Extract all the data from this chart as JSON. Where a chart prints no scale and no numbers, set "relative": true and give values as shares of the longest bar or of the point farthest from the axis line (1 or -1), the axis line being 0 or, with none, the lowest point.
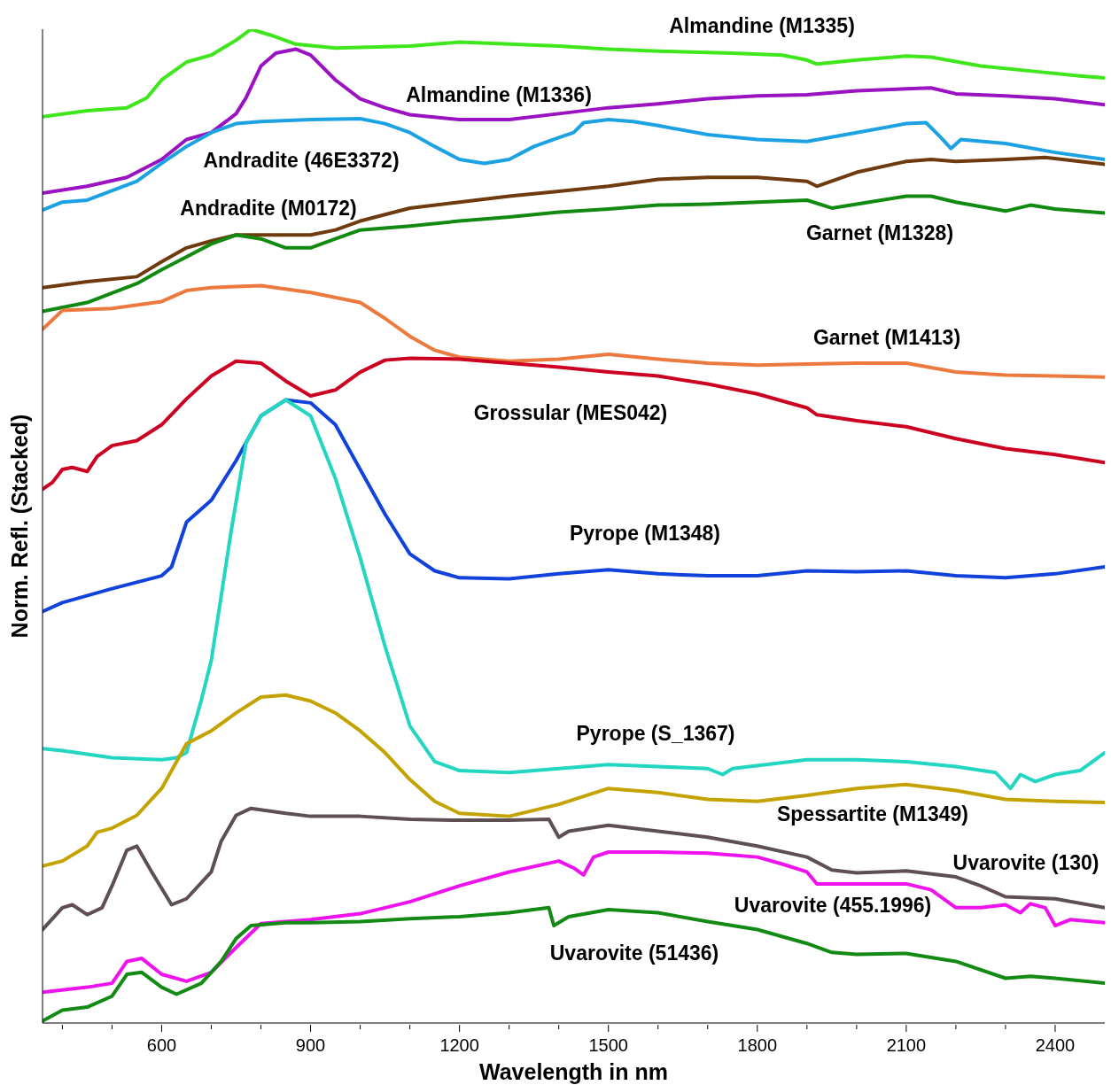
{
  "chart_data": {
    "type": "line",
    "relative": true,
    "xlabel": "Wavelength in nm",
    "ylabel": "Norm. Refl. (Stacked)",
    "xlim": [
      360,
      2500
    ],
    "xticks": [
      {
        "value": 400,
        "label": null
      },
      {
        "value": 500,
        "label": null
      },
      600,
      {
        "value": 700,
        "label": null
      },
      {
        "value": 800,
        "label": null
      },
      900,
      {
        "value": 1000,
        "label": null
      },
      {
        "value": 1100,
        "label": null
      },
      1200,
      {
        "value": 1300,
        "label": null
      },
      {
        "value": 1400,
        "label": null
      },
      1500,
      {
        "value": 1600,
        "label": null
      },
      {
        "value": 1700,
        "label": null
      },
      1800,
      {
        "value": 1900,
        "label": null
      },
      {
        "value": 2000,
        "label": null
      },
      2100,
      {
        "value": 2200,
        "label": null
      },
      {
        "value": 2300,
        "label": null
      },
      2400
    ],
    "grid": false,
    "line_style": "solid",
    "marker": "none",
    "series": [
      {
        "name": "Almandine (M1335)",
        "color": "#3fe61c",
        "x": [
          360,
          450,
          530,
          570,
          600,
          650,
          700,
          750,
          780,
          820,
          870,
          950,
          1100,
          1200,
          1300,
          1400,
          1500,
          1600,
          1750,
          1850,
          1900,
          1920,
          2000,
          2100,
          2150,
          2250,
          2350,
          2450,
          2500
        ],
        "values": [
          0.912,
          0.918,
          0.921,
          0.931,
          0.949,
          0.967,
          0.974,
          0.989,
          1.0,
          0.994,
          0.985,
          0.981,
          0.983,
          0.987,
          0.985,
          0.983,
          0.98,
          0.978,
          0.976,
          0.974,
          0.969,
          0.965,
          0.969,
          0.973,
          0.972,
          0.963,
          0.958,
          0.953,
          0.951
        ]
      },
      {
        "name": "Almandine (M1336)",
        "color": "#9a12c2",
        "x": [
          360,
          450,
          530,
          600,
          650,
          700,
          750,
          770,
          800,
          830,
          870,
          900,
          950,
          1000,
          1050,
          1100,
          1200,
          1300,
          1400,
          1500,
          1600,
          1700,
          1800,
          1900,
          2000,
          2100,
          2150,
          2200,
          2300,
          2400,
          2500
        ],
        "values": [
          0.835,
          0.842,
          0.851,
          0.869,
          0.889,
          0.896,
          0.915,
          0.931,
          0.963,
          0.976,
          0.98,
          0.974,
          0.949,
          0.93,
          0.921,
          0.914,
          0.909,
          0.909,
          0.915,
          0.921,
          0.925,
          0.93,
          0.933,
          0.934,
          0.938,
          0.94,
          0.941,
          0.935,
          0.933,
          0.93,
          0.924
        ]
      },
      {
        "name": "Andradite (46E3372)",
        "color": "#1ca2e2",
        "x": [
          360,
          400,
          450,
          550,
          600,
          650,
          700,
          750,
          800,
          900,
          1000,
          1050,
          1100,
          1150,
          1200,
          1250,
          1300,
          1350,
          1400,
          1430,
          1450,
          1500,
          1550,
          1600,
          1700,
          1800,
          1900,
          2000,
          2100,
          2140,
          2170,
          2190,
          2210,
          2300,
          2400,
          2500
        ],
        "values": [
          0.818,
          0.826,
          0.828,
          0.847,
          0.865,
          0.882,
          0.896,
          0.905,
          0.907,
          0.909,
          0.91,
          0.905,
          0.896,
          0.882,
          0.869,
          0.865,
          0.869,
          0.882,
          0.891,
          0.896,
          0.906,
          0.909,
          0.907,
          0.903,
          0.894,
          0.889,
          0.887,
          0.896,
          0.905,
          0.906,
          0.891,
          0.88,
          0.889,
          0.885,
          0.876,
          0.869
        ]
      },
      {
        "name": "Andradite (M0172)",
        "color": "#6e3a0e",
        "x": [
          360,
          450,
          550,
          600,
          650,
          700,
          750,
          800,
          900,
          950,
          1000,
          1100,
          1200,
          1300,
          1400,
          1500,
          1600,
          1700,
          1800,
          1900,
          1920,
          2000,
          2100,
          2150,
          2200,
          2300,
          2380,
          2450,
          2500
        ],
        "values": [
          0.74,
          0.746,
          0.751,
          0.766,
          0.78,
          0.787,
          0.793,
          0.793,
          0.793,
          0.798,
          0.807,
          0.82,
          0.826,
          0.832,
          0.837,
          0.842,
          0.849,
          0.851,
          0.851,
          0.847,
          0.842,
          0.856,
          0.867,
          0.869,
          0.867,
          0.869,
          0.871,
          0.867,
          0.864
        ]
      },
      {
        "name": "Garnet (M1328)",
        "color": "#128a12",
        "x": [
          360,
          450,
          550,
          600,
          650,
          700,
          750,
          800,
          850,
          900,
          950,
          1000,
          1100,
          1200,
          1300,
          1400,
          1500,
          1600,
          1700,
          1800,
          1900,
          1950,
          2000,
          2100,
          2150,
          2200,
          2300,
          2350,
          2400,
          2500
        ],
        "values": [
          0.716,
          0.725,
          0.744,
          0.758,
          0.771,
          0.784,
          0.793,
          0.789,
          0.78,
          0.78,
          0.789,
          0.798,
          0.802,
          0.807,
          0.811,
          0.816,
          0.819,
          0.823,
          0.824,
          0.826,
          0.828,
          0.82,
          0.824,
          0.832,
          0.832,
          0.826,
          0.817,
          0.823,
          0.819,
          0.815
        ]
      },
      {
        "name": "Garnet (M1413)",
        "color": "#ec7a3e",
        "x": [
          360,
          400,
          500,
          600,
          650,
          700,
          800,
          900,
          1000,
          1050,
          1100,
          1150,
          1200,
          1300,
          1400,
          1500,
          1600,
          1700,
          1800,
          1900,
          2000,
          2100,
          2200,
          2300,
          2400,
          2500
        ],
        "values": [
          0.698,
          0.717,
          0.719,
          0.726,
          0.737,
          0.74,
          0.742,
          0.735,
          0.725,
          0.709,
          0.691,
          0.677,
          0.67,
          0.666,
          0.668,
          0.673,
          0.668,
          0.664,
          0.662,
          0.663,
          0.664,
          0.664,
          0.655,
          0.652,
          0.651,
          0.65
        ]
      },
      {
        "name": "Grossular (MES042)",
        "color": "#cc0020",
        "x": [
          360,
          380,
          400,
          420,
          450,
          470,
          500,
          550,
          600,
          650,
          700,
          750,
          800,
          850,
          900,
          950,
          1000,
          1050,
          1100,
          1200,
          1300,
          1400,
          1500,
          1600,
          1700,
          1800,
          1900,
          1920,
          2000,
          2100,
          2200,
          2300,
          2400,
          2500
        ],
        "values": [
          0.537,
          0.544,
          0.557,
          0.559,
          0.555,
          0.57,
          0.581,
          0.586,
          0.602,
          0.628,
          0.651,
          0.666,
          0.664,
          0.646,
          0.631,
          0.637,
          0.655,
          0.667,
          0.669,
          0.668,
          0.664,
          0.66,
          0.655,
          0.651,
          0.643,
          0.633,
          0.619,
          0.612,
          0.606,
          0.6,
          0.588,
          0.578,
          0.572,
          0.564
        ]
      },
      {
        "name": "Pyrope (M1348)",
        "color": "#1242dc",
        "x": [
          360,
          400,
          500,
          600,
          620,
          650,
          700,
          750,
          800,
          850,
          900,
          950,
          1000,
          1050,
          1100,
          1150,
          1200,
          1300,
          1400,
          1500,
          1600,
          1700,
          1800,
          1900,
          2000,
          2100,
          2200,
          2300,
          2400,
          2500
        ],
        "values": [
          0.414,
          0.423,
          0.437,
          0.45,
          0.459,
          0.504,
          0.526,
          0.566,
          0.611,
          0.627,
          0.624,
          0.602,
          0.557,
          0.512,
          0.472,
          0.455,
          0.448,
          0.447,
          0.452,
          0.456,
          0.452,
          0.45,
          0.45,
          0.455,
          0.454,
          0.455,
          0.45,
          0.448,
          0.452,
          0.459
        ]
      },
      {
        "name": "Pyrope (S_1367)",
        "color": "#22d6c2",
        "x": [
          360,
          400,
          500,
          600,
          630,
          650,
          680,
          700,
          740,
          770,
          800,
          850,
          900,
          950,
          1000,
          1050,
          1100,
          1150,
          1200,
          1300,
          1400,
          1500,
          1600,
          1700,
          1730,
          1750,
          1900,
          2000,
          2100,
          2200,
          2280,
          2310,
          2330,
          2360,
          2400,
          2450,
          2500
        ],
        "values": [
          0.276,
          0.274,
          0.267,
          0.265,
          0.267,
          0.272,
          0.325,
          0.365,
          0.495,
          0.584,
          0.611,
          0.627,
          0.611,
          0.548,
          0.468,
          0.379,
          0.299,
          0.263,
          0.254,
          0.252,
          0.256,
          0.26,
          0.258,
          0.256,
          0.25,
          0.256,
          0.265,
          0.265,
          0.263,
          0.258,
          0.252,
          0.236,
          0.25,
          0.243,
          0.25,
          0.254,
          0.272
        ]
      },
      {
        "name": "Spessartite (M1349)",
        "color": "#c4a200",
        "x": [
          360,
          400,
          450,
          470,
          500,
          550,
          600,
          650,
          700,
          750,
          800,
          850,
          900,
          950,
          1000,
          1050,
          1100,
          1150,
          1200,
          1300,
          1400,
          1500,
          1600,
          1700,
          1800,
          1900,
          2000,
          2100,
          2200,
          2300,
          2400,
          2500
        ],
        "values": [
          0.158,
          0.163,
          0.178,
          0.192,
          0.196,
          0.209,
          0.236,
          0.281,
          0.294,
          0.312,
          0.328,
          0.33,
          0.324,
          0.312,
          0.294,
          0.272,
          0.245,
          0.223,
          0.211,
          0.208,
          0.22,
          0.236,
          0.232,
          0.225,
          0.223,
          0.229,
          0.236,
          0.24,
          0.234,
          0.225,
          0.223,
          0.222
        ]
      },
      {
        "name": "Uvarovite (130)",
        "color": "#5e5052",
        "x": [
          360,
          400,
          420,
          450,
          480,
          500,
          530,
          550,
          580,
          620,
          650,
          700,
          720,
          750,
          780,
          850,
          900,
          1000,
          1100,
          1200,
          1300,
          1380,
          1400,
          1420,
          1500,
          1600,
          1700,
          1800,
          1900,
          1950,
          2000,
          2100,
          2200,
          2250,
          2300,
          2400,
          2500
        ],
        "values": [
          0.094,
          0.116,
          0.119,
          0.109,
          0.116,
          0.138,
          0.174,
          0.178,
          0.152,
          0.119,
          0.125,
          0.152,
          0.183,
          0.209,
          0.216,
          0.211,
          0.208,
          0.208,
          0.205,
          0.204,
          0.204,
          0.205,
          0.187,
          0.193,
          0.199,
          0.193,
          0.187,
          0.178,
          0.167,
          0.154,
          0.151,
          0.153,
          0.147,
          0.138,
          0.127,
          0.125,
          0.116
        ]
      },
      {
        "name": "Uvarovite (455.1996)",
        "color": "#ee12ee",
        "x": [
          360,
          450,
          500,
          530,
          560,
          600,
          650,
          700,
          750,
          800,
          850,
          900,
          1000,
          1100,
          1200,
          1300,
          1400,
          1430,
          1450,
          1470,
          1500,
          1600,
          1700,
          1800,
          1850,
          1900,
          1920,
          2000,
          2100,
          2150,
          2200,
          2250,
          2300,
          2330,
          2350,
          2380,
          2400,
          2430,
          2500
        ],
        "values": [
          0.031,
          0.036,
          0.04,
          0.062,
          0.065,
          0.049,
          0.042,
          0.051,
          0.076,
          0.1,
          0.102,
          0.104,
          0.11,
          0.122,
          0.138,
          0.152,
          0.163,
          0.156,
          0.149,
          0.167,
          0.172,
          0.172,
          0.171,
          0.167,
          0.16,
          0.152,
          0.14,
          0.14,
          0.14,
          0.134,
          0.116,
          0.116,
          0.119,
          0.111,
          0.12,
          0.116,
          0.098,
          0.104,
          0.101
        ]
      },
      {
        "name": "Uvarovite (51436)",
        "color": "#138a13",
        "x": [
          360,
          400,
          450,
          500,
          530,
          560,
          600,
          630,
          680,
          720,
          750,
          780,
          850,
          900,
          1000,
          1100,
          1200,
          1300,
          1380,
          1390,
          1420,
          1500,
          1600,
          1700,
          1800,
          1900,
          1950,
          2000,
          2100,
          2200,
          2300,
          2350,
          2400,
          2500
        ],
        "values": [
          0.002,
          0.013,
          0.016,
          0.027,
          0.049,
          0.051,
          0.036,
          0.029,
          0.04,
          0.062,
          0.085,
          0.098,
          0.101,
          0.101,
          0.102,
          0.105,
          0.107,
          0.111,
          0.116,
          0.098,
          0.107,
          0.114,
          0.111,
          0.102,
          0.094,
          0.08,
          0.071,
          0.069,
          0.07,
          0.062,
          0.045,
          0.047,
          0.045,
          0.04
        ]
      }
    ]
  }
}
